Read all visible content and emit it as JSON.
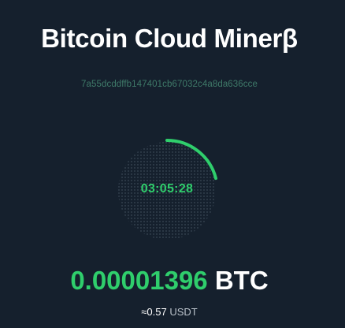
{
  "app": {
    "title": "Bitcoin Cloud Minerβ"
  },
  "wallet": {
    "hash": "7a55dcddffb147401cb67032c4a8da636cce"
  },
  "timer": {
    "time": "03:05:28",
    "progress": 0.21
  },
  "balance": {
    "amount": "0.00001396",
    "unit": "BTC"
  },
  "conversion": {
    "approx": "≈0.57",
    "unit": "USDT"
  },
  "colors": {
    "background": "#15202d",
    "accent": "#2fce6c"
  }
}
